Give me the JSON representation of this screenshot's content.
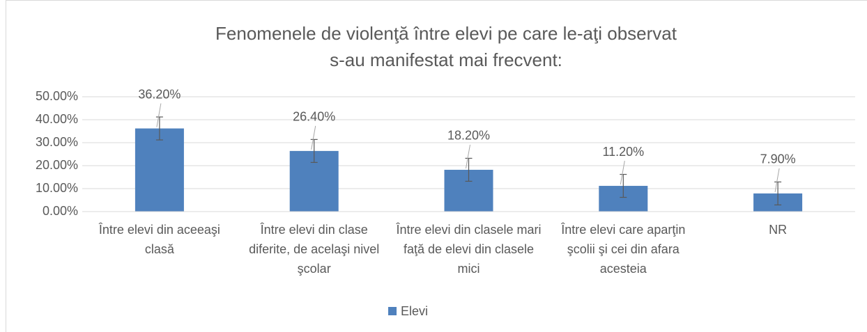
{
  "chart_data": {
    "type": "bar",
    "title": [
      "Fenomenele de violenţă între elevi pe care le-aţi observat",
      "s-au manifestat mai frecvent:"
    ],
    "categories": [
      "Între elevi din aceeaşi clasă",
      "Între elevi din clase diferite, de acelaşi nivel şcolar",
      "Între elevi din clasele mari faţă de elevi din clasele mici",
      "Între elevi care aparţin şcolii şi cei din afara acesteia",
      "NR"
    ],
    "series": [
      {
        "name": "Elevi",
        "color": "#4f81bd",
        "values": [
          36.2,
          26.4,
          18.2,
          11.2,
          7.9
        ],
        "value_labels": [
          "36.20%",
          "26.40%",
          "18.20%",
          "11.20%",
          "7.90%"
        ],
        "errors": [
          5,
          5,
          5,
          5,
          5
        ]
      }
    ],
    "ylim": [
      0,
      50
    ],
    "yticks": [
      {
        "value": 0,
        "label": "0.00%"
      },
      {
        "value": 10,
        "label": "10.00%"
      },
      {
        "value": 20,
        "label": "20.00%"
      },
      {
        "value": 30,
        "label": "30.00%"
      },
      {
        "value": 40,
        "label": "40.00%"
      },
      {
        "value": 50,
        "label": "50.00%"
      }
    ],
    "grid": true,
    "legend": "bottom"
  }
}
